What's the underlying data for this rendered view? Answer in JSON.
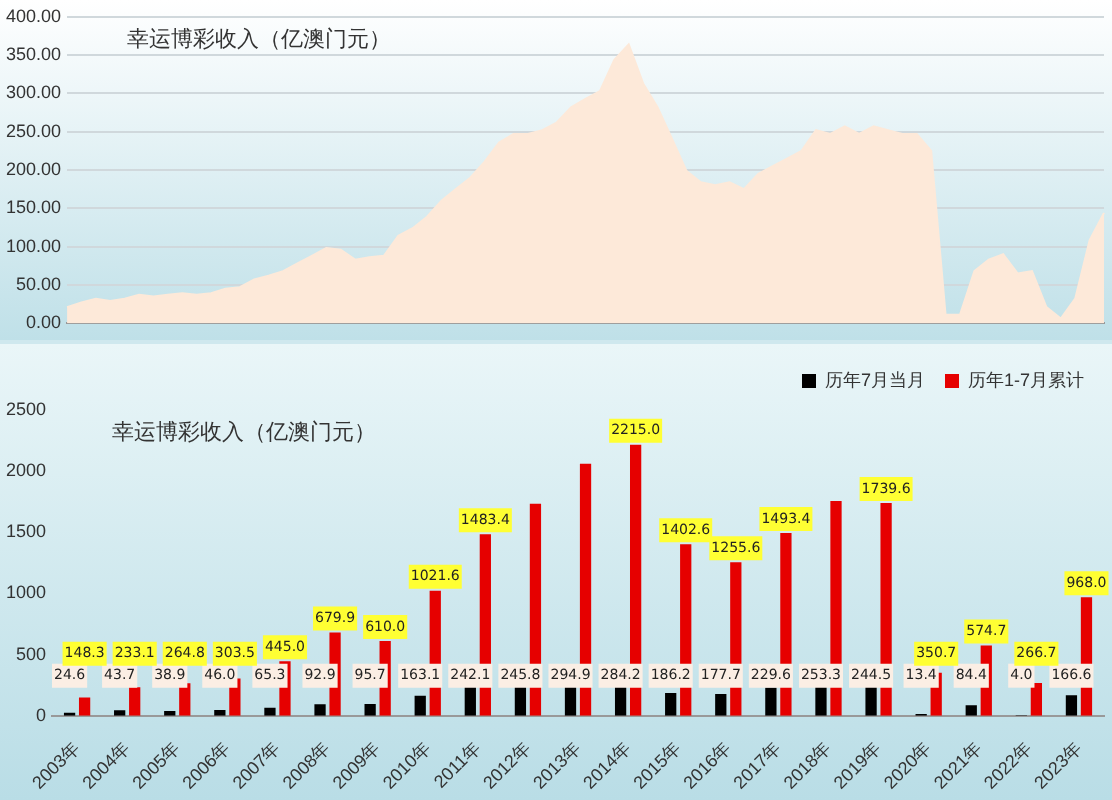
{
  "chart_data": [
    {
      "type": "area",
      "title": "幸运博彩收入（亿澳门元）",
      "categories": [
        null,
        null,
        null,
        null,
        null,
        null,
        null,
        null,
        null,
        null,
        null,
        null,
        null,
        null,
        null,
        null,
        null,
        null,
        null,
        null,
        null,
        null,
        null,
        null,
        null,
        null,
        null,
        null,
        null,
        null,
        null,
        null,
        null,
        null,
        null,
        null,
        null,
        null,
        null,
        null,
        null,
        null,
        null,
        null,
        null,
        null,
        null,
        null,
        null,
        null,
        null,
        null,
        null,
        null,
        null,
        null,
        null,
        null,
        null,
        null,
        null,
        null,
        null,
        null,
        null,
        null,
        null,
        null,
        null,
        null,
        null,
        null,
        null
      ],
      "series": [
        {
          "color": "#fde9d9",
          "values": [
            21,
            27,
            32,
            29,
            32,
            37,
            35,
            37,
            39,
            37,
            39,
            45,
            47,
            57,
            62,
            68,
            78,
            88,
            98,
            96,
            83,
            86,
            88,
            114,
            124,
            139,
            160,
            175,
            190,
            211,
            236,
            247,
            247,
            252,
            262,
            282,
            293,
            303,
            344,
            364,
            313,
            282,
            241,
            199,
            184,
            180,
            184,
            175,
            195,
            205,
            215,
            225,
            252,
            247,
            257,
            247,
            257,
            252,
            247,
            247,
            225,
            11,
            11,
            68,
            83,
            90,
            65,
            68,
            21,
            6,
            32,
            108,
            144
          ]
        }
      ],
      "ylim": [
        0,
        400
      ],
      "yticks": [
        {
          "value": 0,
          "label": "0.00"
        },
        {
          "value": 50,
          "label": "50.00"
        },
        {
          "value": 100,
          "label": "100.00"
        },
        {
          "value": 150,
          "label": "150.00"
        },
        {
          "value": 200,
          "label": "200.00"
        },
        {
          "value": 250,
          "label": "250.00"
        },
        {
          "value": 300,
          "label": "300.00"
        },
        {
          "value": 350,
          "label": "350.00"
        },
        {
          "value": 400,
          "label": "400.00"
        }
      ],
      "grid": "y",
      "tick_labels": "y"
    },
    {
      "type": "bar",
      "title": "幸运博彩收入（亿澳门元）",
      "categories": [
        "2003年",
        "2004年",
        "2005年",
        "2006年",
        "2007年",
        "2008年",
        "2009年",
        "2010年",
        "2011年",
        "2012年",
        "2013年",
        "2014年",
        "2015年",
        "2016年",
        "2017年",
        "2018年",
        "2019年",
        "2020年",
        "2021年",
        "2022年",
        "2023年"
      ],
      "series": [
        {
          "name": "历年7月当月",
          "color": "#000000",
          "values": [
            24.6,
            43.7,
            38.9,
            46.0,
            65.3,
            92.9,
            95.7,
            163.1,
            242.1,
            245.8,
            294.9,
            284.2,
            186.2,
            177.7,
            229.6,
            253.3,
            244.5,
            13.4,
            84.4,
            4.0,
            166.6
          ],
          "value_labels": [
            "24.6",
            "43.7",
            "38.9",
            "46.0",
            "65.3",
            "92.9",
            "95.7",
            "163.1",
            "242.1",
            "245.8",
            "294.9",
            "284.2",
            "186.2",
            "177.7",
            "229.6",
            "253.3",
            "244.5",
            "13.4",
            "84.4",
            "4.0",
            "166.6"
          ]
        },
        {
          "name": "历年1-7月累计",
          "color": "#e60000",
          "values": [
            148.3,
            233.1,
            264.8,
            303.5,
            445.0,
            679.9,
            610.0,
            1021.6,
            1483.4,
            1733,
            2060,
            2215.0,
            1402.6,
            1255.6,
            1493.4,
            1755,
            1739.6,
            350.7,
            574.7,
            266.7,
            968.0
          ],
          "value_labels": [
            "148.3",
            "233.1",
            "264.8",
            "303.5",
            "445.0",
            "679.9",
            "610.0",
            "1021.6",
            "1483.4",
            null,
            null,
            "2215.0",
            "1402.6",
            "1255.6",
            "1493.4",
            null,
            "1739.6",
            "350.7",
            "574.7",
            "266.7",
            "968.0"
          ]
        }
      ],
      "ylim": [
        0,
        2500
      ],
      "yticks": [
        0,
        500,
        1000,
        1500,
        2000,
        2500
      ],
      "legend": "top right"
    }
  ]
}
